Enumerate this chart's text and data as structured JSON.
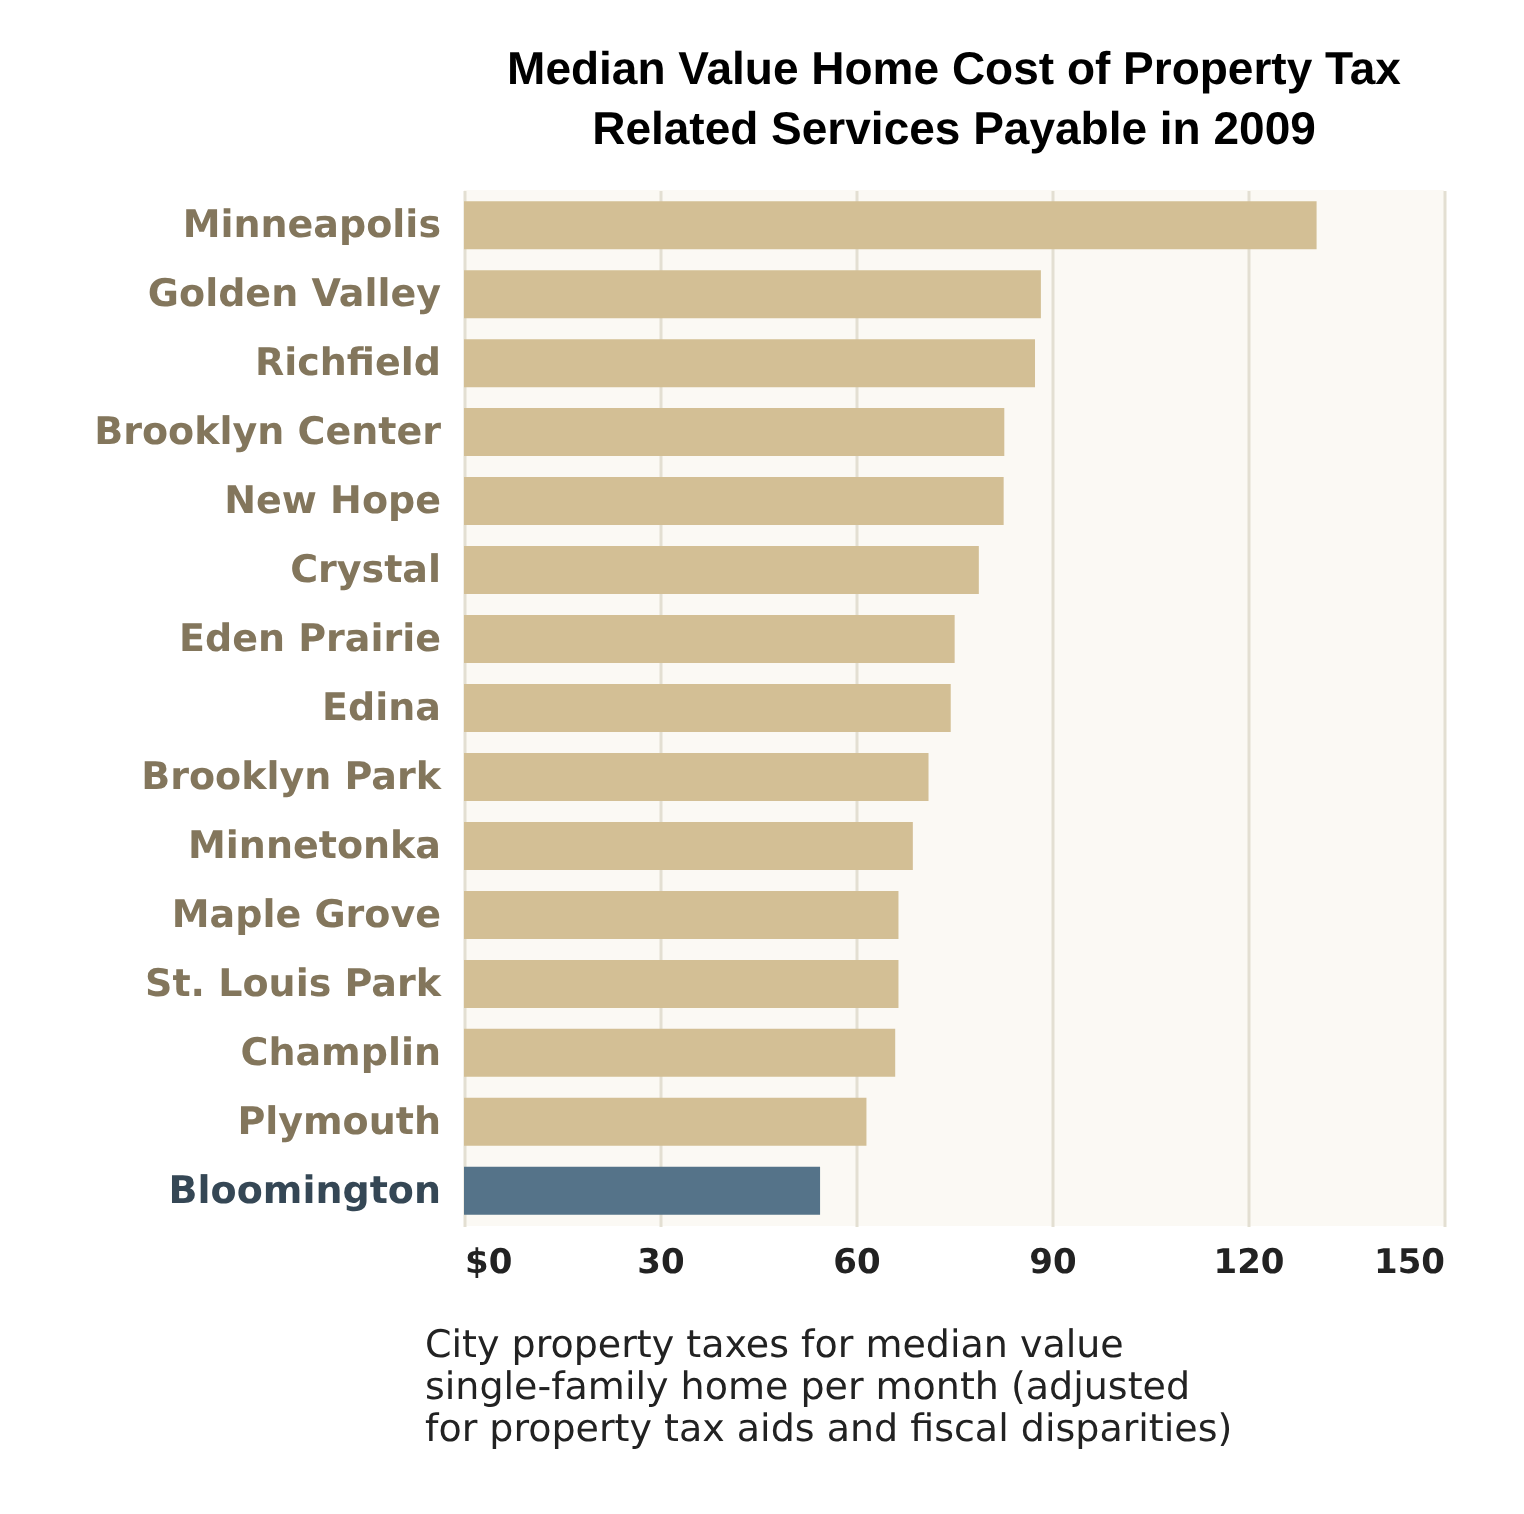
{
  "chart_data": {
    "type": "bar",
    "orientation": "horizontal",
    "title": "Median Value Home Cost of Property Tax\nRelated Services Payable in 2009",
    "xlabel": "City property taxes for median value\nsingle-family home per month (adjusted\nfor property tax aids and fiscal disparities)",
    "categories": [
      "Minneapolis",
      "Golden Valley",
      "Richfield",
      "Brooklyn Center",
      "New Hope",
      "Crystal",
      "Eden Prairie",
      "Edina",
      "Brooklyn Park",
      "Minnetonka",
      "Maple Grove",
      "St. Louis Park",
      "Champlin",
      "Plymouth",
      "Bloomington"
    ],
    "values": [
      130.5,
      88.3,
      87.4,
      82.7,
      82.6,
      78.8,
      75.1,
      74.5,
      71.1,
      68.7,
      66.5,
      66.5,
      66.0,
      61.6,
      54.5
    ],
    "colors": [
      "#d3bf95",
      "#d3bf95",
      "#d3bf95",
      "#d3bf95",
      "#d3bf95",
      "#d3bf95",
      "#d3bf95",
      "#d3bf95",
      "#d3bf95",
      "#d3bf95",
      "#d3bf95",
      "#d3bf95",
      "#d3bf95",
      "#d3bf95",
      "#557389"
    ],
    "xlim": [
      0,
      150
    ],
    "xticks": [
      {
        "value": 0,
        "label": "$0"
      },
      30,
      60,
      90,
      120,
      150
    ],
    "grid": "x"
  }
}
